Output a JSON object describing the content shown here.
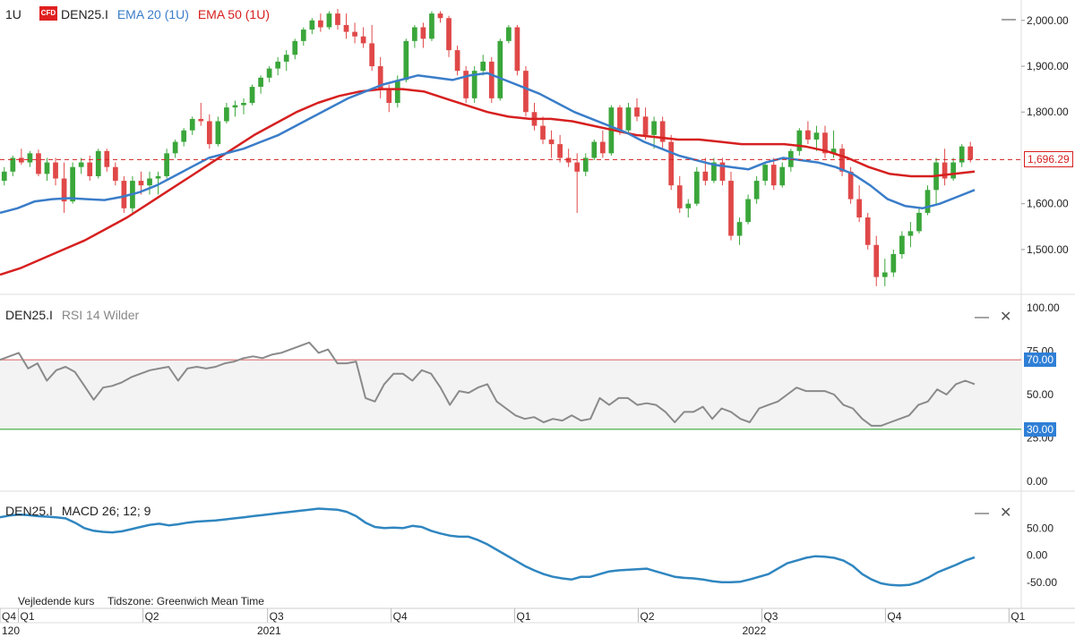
{
  "header": {
    "timeframe": "1U",
    "logo_text": "CFD",
    "symbol": "DEN25.I",
    "ema20_label": "EMA 20 (1U)",
    "ema50_label": "EMA 50 (1U)"
  },
  "rsi_header": {
    "symbol": "DEN25.I",
    "label": "RSI 14 Wilder"
  },
  "macd_header": {
    "symbol": "DEN25.I",
    "label": "MACD 26; 12; 9"
  },
  "footer": {
    "price_note": "Vejledende kurs",
    "timezone_note": "Tidszone: Greenwich Mean Time"
  },
  "controls": {
    "minimize": "—",
    "close": "✕"
  },
  "colors": {
    "up": "#3aa63a",
    "down": "#e04848",
    "ema20": "#3a7dc9",
    "ema50": "#d62020",
    "rsi": "#8a8a8a",
    "macd": "#2f86c0",
    "rsi_upper": "#e07070",
    "rsi_lower": "#3aa63a"
  },
  "chart_data": [
    {
      "type": "candlestick",
      "last_price": 1696.29,
      "last_price_label": "1,696.29",
      "y_ticks": [
        {
          "v": 2000,
          "label": "2,000.00"
        },
        {
          "v": 1900,
          "label": "1,900.00"
        },
        {
          "v": 1800,
          "label": "1,800.00"
        },
        {
          "v": 1600,
          "label": "1,600.00"
        },
        {
          "v": 1500,
          "label": "1,500.00"
        }
      ],
      "ylim": [
        1410,
        2025
      ],
      "candles": [
        [
          1650,
          1680,
          1640,
          1670
        ],
        [
          1670,
          1705,
          1660,
          1700
        ],
        [
          1700,
          1720,
          1685,
          1690
        ],
        [
          1690,
          1715,
          1680,
          1710
        ],
        [
          1710,
          1718,
          1660,
          1665
        ],
        [
          1665,
          1700,
          1650,
          1690
        ],
        [
          1690,
          1700,
          1640,
          1655
        ],
        [
          1655,
          1690,
          1580,
          1605
        ],
        [
          1605,
          1690,
          1600,
          1680
        ],
        [
          1680,
          1700,
          1665,
          1690
        ],
        [
          1690,
          1705,
          1650,
          1660
        ],
        [
          1660,
          1720,
          1655,
          1715
        ],
        [
          1715,
          1720,
          1670,
          1680
        ],
        [
          1680,
          1690,
          1640,
          1650
        ],
        [
          1650,
          1660,
          1580,
          1590
        ],
        [
          1590,
          1660,
          1580,
          1650
        ],
        [
          1650,
          1670,
          1620,
          1640
        ],
        [
          1640,
          1670,
          1620,
          1655
        ],
        [
          1655,
          1670,
          1620,
          1660
        ],
        [
          1660,
          1720,
          1655,
          1710
        ],
        [
          1710,
          1740,
          1700,
          1735
        ],
        [
          1735,
          1765,
          1725,
          1760
        ],
        [
          1760,
          1790,
          1750,
          1785
        ],
        [
          1785,
          1820,
          1770,
          1780
        ],
        [
          1780,
          1795,
          1720,
          1730
        ],
        [
          1730,
          1790,
          1725,
          1780
        ],
        [
          1780,
          1820,
          1775,
          1810
        ],
        [
          1810,
          1825,
          1790,
          1815
        ],
        [
          1815,
          1830,
          1795,
          1820
        ],
        [
          1820,
          1860,
          1815,
          1855
        ],
        [
          1855,
          1880,
          1840,
          1875
        ],
        [
          1875,
          1900,
          1865,
          1895
        ],
        [
          1895,
          1920,
          1880,
          1910
        ],
        [
          1910,
          1935,
          1890,
          1925
        ],
        [
          1925,
          1960,
          1915,
          1955
        ],
        [
          1955,
          1985,
          1945,
          1980
        ],
        [
          1980,
          2005,
          1970,
          2000
        ],
        [
          2000,
          2015,
          1975,
          1985
        ],
        [
          1985,
          2020,
          1980,
          2015
        ],
        [
          2015,
          2025,
          1980,
          1990
        ],
        [
          1990,
          2015,
          1960,
          1975
        ],
        [
          1975,
          1995,
          1950,
          1965
        ],
        [
          1965,
          1985,
          1940,
          1950
        ],
        [
          1950,
          1990,
          1890,
          1900
        ],
        [
          1900,
          1920,
          1830,
          1850
        ],
        [
          1850,
          1860,
          1800,
          1820
        ],
        [
          1820,
          1880,
          1810,
          1870
        ],
        [
          1870,
          1960,
          1865,
          1955
        ],
        [
          1955,
          1990,
          1940,
          1985
        ],
        [
          1985,
          1995,
          1940,
          1960
        ],
        [
          1960,
          2020,
          1955,
          2015
        ],
        [
          2015,
          2020,
          1995,
          2005
        ],
        [
          2005,
          2010,
          1920,
          1935
        ],
        [
          1935,
          1945,
          1880,
          1890
        ],
        [
          1890,
          1900,
          1820,
          1830
        ],
        [
          1830,
          1900,
          1820,
          1890
        ],
        [
          1890,
          1925,
          1880,
          1910
        ],
        [
          1910,
          1920,
          1820,
          1830
        ],
        [
          1830,
          1960,
          1825,
          1955
        ],
        [
          1955,
          1990,
          1950,
          1985
        ],
        [
          1985,
          1990,
          1880,
          1890
        ],
        [
          1890,
          1900,
          1790,
          1800
        ],
        [
          1800,
          1820,
          1760,
          1770
        ],
        [
          1770,
          1790,
          1730,
          1740
        ],
        [
          1740,
          1760,
          1700,
          1730
        ],
        [
          1730,
          1750,
          1690,
          1700
        ],
        [
          1700,
          1720,
          1680,
          1690
        ],
        [
          1690,
          1710,
          1580,
          1670
        ],
        [
          1670,
          1710,
          1660,
          1700
        ],
        [
          1700,
          1740,
          1695,
          1735
        ],
        [
          1735,
          1760,
          1700,
          1710
        ],
        [
          1710,
          1815,
          1705,
          1810
        ],
        [
          1810,
          1815,
          1750,
          1760
        ],
        [
          1760,
          1820,
          1755,
          1810
        ],
        [
          1810,
          1830,
          1780,
          1790
        ],
        [
          1790,
          1810,
          1740,
          1750
        ],
        [
          1750,
          1790,
          1720,
          1780
        ],
        [
          1780,
          1790,
          1720,
          1735
        ],
        [
          1735,
          1750,
          1630,
          1640
        ],
        [
          1640,
          1660,
          1580,
          1590
        ],
        [
          1590,
          1610,
          1570,
          1600
        ],
        [
          1600,
          1680,
          1595,
          1670
        ],
        [
          1670,
          1700,
          1640,
          1650
        ],
        [
          1650,
          1700,
          1645,
          1690
        ],
        [
          1690,
          1700,
          1640,
          1650
        ],
        [
          1650,
          1670,
          1520,
          1530
        ],
        [
          1530,
          1570,
          1510,
          1560
        ],
        [
          1560,
          1620,
          1555,
          1610
        ],
        [
          1610,
          1660,
          1600,
          1650
        ],
        [
          1650,
          1690,
          1640,
          1685
        ],
        [
          1685,
          1700,
          1630,
          1640
        ],
        [
          1640,
          1690,
          1635,
          1680
        ],
        [
          1680,
          1720,
          1670,
          1715
        ],
        [
          1715,
          1765,
          1705,
          1760
        ],
        [
          1760,
          1780,
          1730,
          1740
        ],
        [
          1740,
          1770,
          1715,
          1755
        ],
        [
          1755,
          1770,
          1700,
          1710
        ],
        [
          1710,
          1760,
          1700,
          1720
        ],
        [
          1720,
          1730,
          1660,
          1670
        ],
        [
          1670,
          1680,
          1600,
          1610
        ],
        [
          1610,
          1640,
          1560,
          1570
        ],
        [
          1570,
          1580,
          1500,
          1510
        ],
        [
          1510,
          1530,
          1420,
          1440
        ],
        [
          1440,
          1480,
          1420,
          1450
        ],
        [
          1450,
          1500,
          1440,
          1490
        ],
        [
          1490,
          1540,
          1480,
          1530
        ],
        [
          1530,
          1560,
          1505,
          1540
        ],
        [
          1540,
          1590,
          1535,
          1580
        ],
        [
          1580,
          1640,
          1575,
          1630
        ],
        [
          1630,
          1700,
          1600,
          1690
        ],
        [
          1690,
          1720,
          1640,
          1655
        ],
        [
          1655,
          1700,
          1650,
          1690
        ],
        [
          1690,
          1730,
          1680,
          1725
        ],
        [
          1725,
          1735,
          1690,
          1696.29
        ]
      ],
      "ema20": [
        1580,
        1590,
        1605,
        1610,
        1612,
        1610,
        1608,
        1615,
        1625,
        1640,
        1660,
        1680,
        1700,
        1710,
        1720,
        1735,
        1750,
        1770,
        1790,
        1810,
        1830,
        1845,
        1860,
        1870,
        1880,
        1875,
        1870,
        1880,
        1885,
        1870,
        1855,
        1840,
        1820,
        1800,
        1785,
        1770,
        1755,
        1735,
        1720,
        1705,
        1695,
        1685,
        1680,
        1675,
        1690,
        1700,
        1695,
        1690,
        1680,
        1665,
        1640,
        1610,
        1595,
        1590,
        1600,
        1615,
        1630
      ],
      "ema50": [
        1445,
        1460,
        1480,
        1500,
        1520,
        1545,
        1570,
        1600,
        1630,
        1660,
        1690,
        1720,
        1750,
        1775,
        1800,
        1820,
        1835,
        1845,
        1850,
        1850,
        1845,
        1830,
        1815,
        1800,
        1790,
        1785,
        1785,
        1780,
        1770,
        1760,
        1750,
        1745,
        1740,
        1740,
        1735,
        1730,
        1730,
        1730,
        1725,
        1715,
        1700,
        1680,
        1665,
        1660,
        1660,
        1665,
        1670
      ]
    },
    {
      "type": "line",
      "name": "RSI 14 Wilder",
      "ylim": [
        0,
        100
      ],
      "y_ticks": [
        {
          "v": 100,
          "label": "100.00"
        },
        {
          "v": 75,
          "label": "75.00"
        },
        {
          "v": 50,
          "label": "50.00"
        },
        {
          "v": 25,
          "label": "25.00"
        },
        {
          "v": 0,
          "label": "0.00"
        }
      ],
      "upper_level": 70,
      "upper_label": "70.00",
      "lower_level": 30,
      "lower_label": "30.00",
      "values": [
        70,
        72,
        74,
        65,
        68,
        58,
        64,
        66,
        63,
        55,
        47,
        54,
        55,
        57,
        60,
        62,
        64,
        65,
        66,
        58,
        65,
        66,
        65,
        66,
        68,
        69,
        71,
        72,
        71,
        73,
        74,
        76,
        78,
        80,
        74,
        76,
        68,
        68,
        69,
        48,
        46,
        56,
        62,
        62,
        58,
        64,
        62,
        54,
        44,
        52,
        51,
        54,
        56,
        46,
        42,
        38,
        36,
        37,
        34,
        36,
        35,
        38,
        35,
        36,
        48,
        44,
        48,
        48,
        44,
        45,
        44,
        40,
        34,
        40,
        40,
        43,
        36,
        42,
        40,
        36,
        34,
        42,
        44,
        46,
        50,
        54,
        52,
        52,
        52,
        50,
        44,
        42,
        36,
        32,
        32,
        34,
        36,
        38,
        44,
        46,
        53,
        50,
        56,
        58,
        56
      ]
    },
    {
      "type": "line",
      "name": "MACD 26; 12; 9",
      "ylim": [
        -95,
        100
      ],
      "y_ticks": [
        {
          "v": 50,
          "label": "50.00"
        },
        {
          "v": 0,
          "label": "0.00"
        },
        {
          "v": -50,
          "label": "-50.00"
        }
      ],
      "values": [
        70,
        73,
        75,
        74,
        72,
        71,
        70,
        68,
        60,
        50,
        45,
        43,
        42,
        44,
        48,
        52,
        56,
        58,
        55,
        57,
        60,
        62,
        63,
        64,
        66,
        68,
        70,
        72,
        74,
        76,
        78,
        80,
        82,
        84,
        86,
        85,
        84,
        80,
        72,
        60,
        52,
        50,
        51,
        50,
        54,
        52,
        45,
        40,
        36,
        34,
        34,
        28,
        20,
        10,
        0,
        -10,
        -20,
        -28,
        -35,
        -40,
        -43,
        -45,
        -40,
        -40,
        -35,
        -30,
        -28,
        -27,
        -26,
        -25,
        -30,
        -35,
        -40,
        -42,
        -43,
        -45,
        -48,
        -50,
        -50,
        -49,
        -45,
        -40,
        -35,
        -25,
        -15,
        -10,
        -5,
        -2,
        -3,
        -5,
        -10,
        -20,
        -35,
        -45,
        -52,
        -55,
        -56,
        -55,
        -50,
        -42,
        -32,
        -25,
        -18,
        -10,
        -4
      ]
    },
    {
      "type": "axis",
      "x_quarter_ticks": [
        {
          "label": "Q4",
          "pos": 0.0
        },
        {
          "label": "Q1",
          "pos": 0.018
        },
        {
          "label": "Q2",
          "pos": 0.14
        },
        {
          "label": "Q3",
          "pos": 0.262
        },
        {
          "label": "Q4",
          "pos": 0.383
        },
        {
          "label": "Q1",
          "pos": 0.504
        },
        {
          "label": "Q2",
          "pos": 0.625
        },
        {
          "label": "Q3",
          "pos": 0.746
        },
        {
          "label": "Q4",
          "pos": 0.867
        },
        {
          "label": "Q1",
          "pos": 0.988
        }
      ],
      "x_year_ticks": [
        {
          "label": "120",
          "pos": 0.0
        },
        {
          "label": "2021",
          "pos": 0.25
        },
        {
          "label": "2022",
          "pos": 0.725
        }
      ]
    }
  ]
}
